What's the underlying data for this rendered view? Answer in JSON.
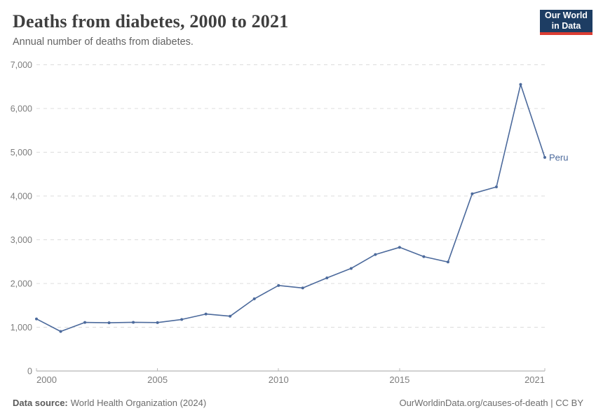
{
  "header": {
    "title": "Deaths from diabetes, 2000 to 2021",
    "subtitle": "Annual number of deaths from diabetes.",
    "logo": {
      "line1": "Our World",
      "line2": "in Data"
    }
  },
  "footer": {
    "source_label": "Data source:",
    "source_value": "World Health Organization (2024)",
    "credit": "OurWorldinData.org/causes-of-death | CC BY"
  },
  "colors": {
    "line": "#4c6a9c",
    "logo_bg": "#1d3d63",
    "logo_stripe": "#dc3d33",
    "gridline": "#dcdcdc",
    "axis": "#a3a3a3",
    "tick_text": "#7d7d7d"
  },
  "chart_data": {
    "type": "line",
    "title": "Deaths from diabetes, 2000 to 2021",
    "subtitle": "Annual number of deaths from diabetes.",
    "xlabel": "",
    "ylabel": "",
    "xlim": [
      2000,
      2021
    ],
    "ylim": [
      0,
      7000
    ],
    "x_ticks": [
      2000,
      2005,
      2010,
      2015,
      2021
    ],
    "y_ticks": [
      0,
      1000,
      2000,
      3000,
      4000,
      5000,
      6000,
      7000
    ],
    "grid": "horizontal-dashed",
    "legend_position": "end-of-line-label",
    "series": [
      {
        "name": "Peru",
        "color": "#4c6a9c",
        "x": [
          2000,
          2001,
          2002,
          2003,
          2004,
          2005,
          2006,
          2007,
          2008,
          2009,
          2010,
          2011,
          2012,
          2013,
          2014,
          2015,
          2016,
          2017,
          2018,
          2019,
          2020,
          2021
        ],
        "values": [
          1190,
          904,
          1110,
          1102,
          1113,
          1107,
          1178,
          1303,
          1253,
          1650,
          1955,
          1898,
          2128,
          2345,
          2662,
          2827,
          2615,
          2492,
          4051,
          4208,
          6551,
          4882
        ]
      }
    ]
  }
}
